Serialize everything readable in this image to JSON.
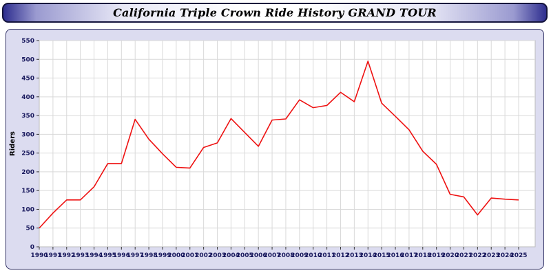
{
  "header": {
    "title": "California Triple Crown Ride History GRAND TOUR"
  },
  "chart_data": {
    "type": "line",
    "title": "California Triple Crown Ride History GRAND TOUR",
    "xlabel": "",
    "ylabel": "Riders",
    "ylim": [
      0,
      550
    ],
    "ytick_step": 50,
    "grid": true,
    "legend_position": "none",
    "line_color": "#ee1111",
    "grid_color": "#d9d9d9",
    "axis_text_color": "#1a1a5e",
    "plot_bg": "#ffffff",
    "x": [
      1990,
      1991,
      1992,
      1993,
      1994,
      1995,
      1996,
      1997,
      1998,
      1999,
      2000,
      2001,
      2002,
      2003,
      2004,
      2005,
      2006,
      2007,
      2008,
      2009,
      2010,
      2011,
      2012,
      2013,
      2014,
      2015,
      2016,
      2017,
      2018,
      2019,
      2020,
      2021,
      2022,
      2023,
      2024,
      2025
    ],
    "series": [
      {
        "name": "Riders",
        "values": [
          50,
          90,
          125,
          125,
          160,
          222,
          222,
          340,
          287,
          248,
          212,
          210,
          265,
          277,
          342,
          305,
          268,
          338,
          341,
          392,
          371,
          377,
          412,
          387,
          495,
          383,
          348,
          312,
          255,
          220,
          140,
          133,
          85,
          130,
          127,
          125
        ]
      }
    ]
  }
}
